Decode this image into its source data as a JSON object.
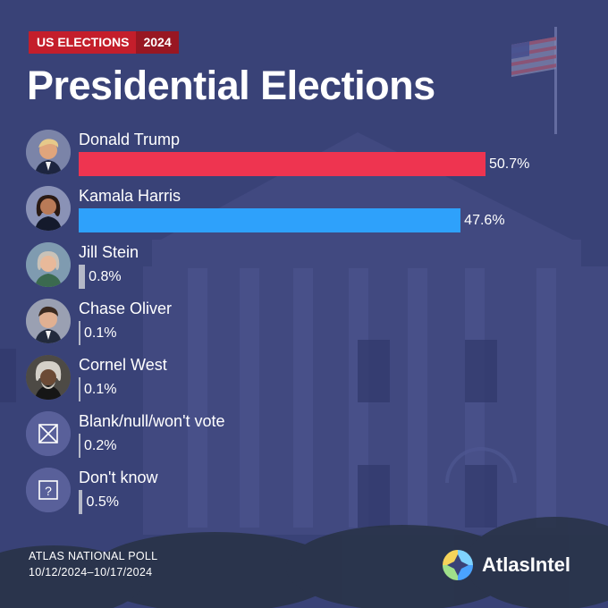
{
  "header": {
    "tag": "US ELECTIONS",
    "year": "2024",
    "title": "Presidential Elections"
  },
  "colors": {
    "background": "#3a4277",
    "trump": "#ee3450",
    "harris": "#2ea1fb",
    "minor": "#b4b8c7",
    "badge": "#c41e2b"
  },
  "chart_data": {
    "type": "bar",
    "orientation": "horizontal",
    "unit": "%",
    "candidates": [
      {
        "name": "Donald Trump",
        "value": 50.7,
        "label": "50.7%",
        "color": "#ee3450",
        "avatar": "trump-photo-icon"
      },
      {
        "name": "Kamala Harris",
        "value": 47.6,
        "label": "47.6%",
        "color": "#2ea1fb",
        "avatar": "harris-photo-icon"
      },
      {
        "name": "Jill Stein",
        "value": 0.8,
        "label": "0.8%",
        "color": "#b4b8c7",
        "avatar": "stein-photo-icon"
      },
      {
        "name": "Chase Oliver",
        "value": 0.1,
        "label": "0.1%",
        "color": "#b4b8c7",
        "avatar": "oliver-photo-icon"
      },
      {
        "name": "Cornel West",
        "value": 0.1,
        "label": "0.1%",
        "color": "#b4b8c7",
        "avatar": "west-photo-icon"
      },
      {
        "name": "Blank/null/won't vote",
        "value": 0.2,
        "label": "0.2%",
        "color": "#b4b8c7",
        "avatar": "x-box-icon"
      },
      {
        "name": "Don't know",
        "value": 0.5,
        "label": "0.5%",
        "color": "#b4b8c7",
        "avatar": "question-box-icon"
      }
    ]
  },
  "footer": {
    "poll": "ATLAS NATIONAL POLL",
    "dates": "10/12/2024–10/17/2024"
  },
  "brand": {
    "name": "AtlasIntel"
  }
}
